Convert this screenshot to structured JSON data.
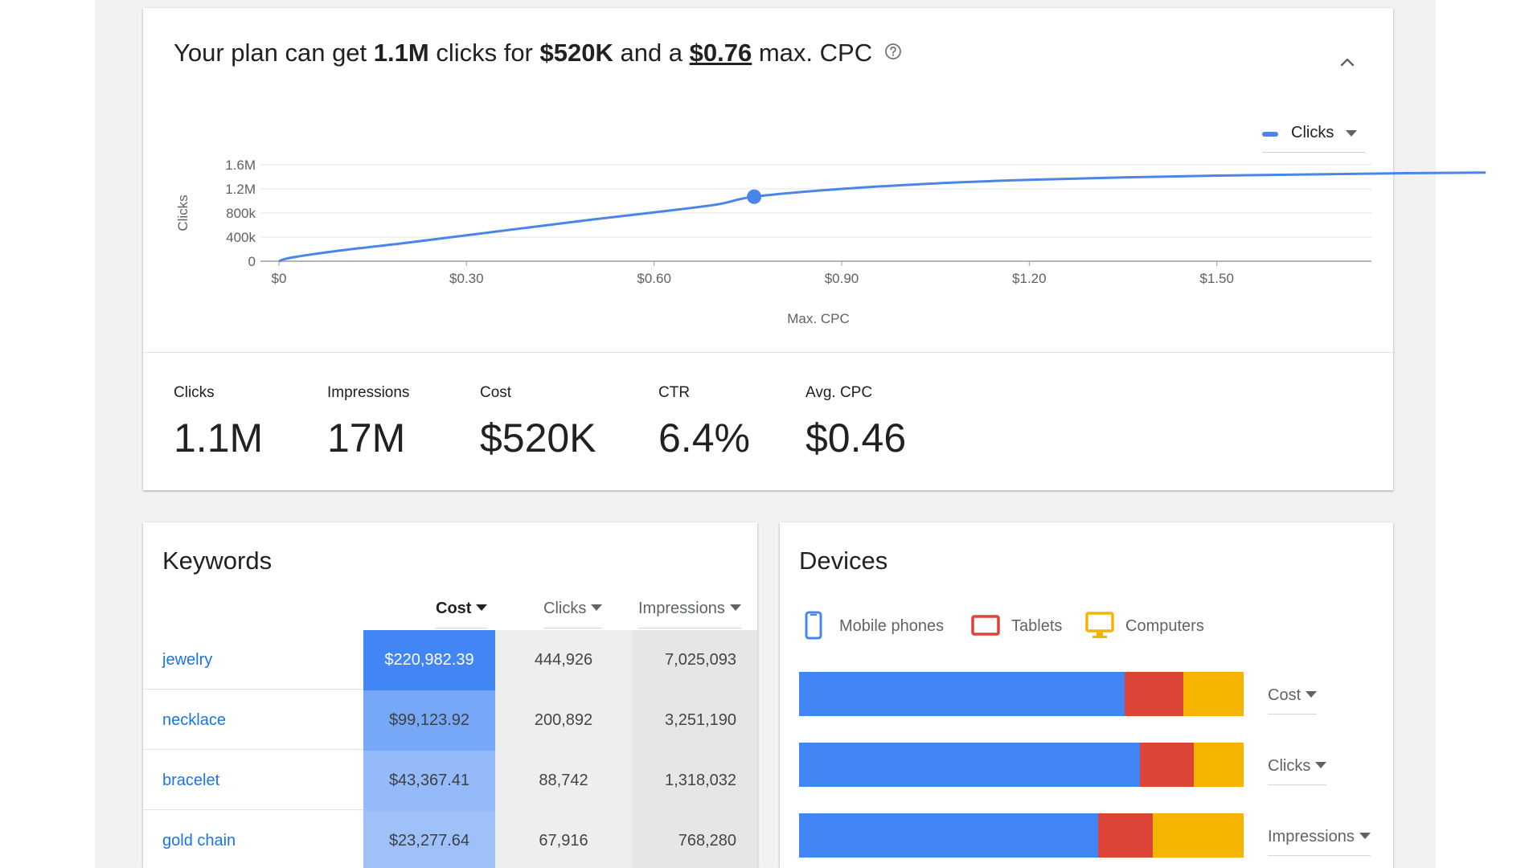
{
  "colors": {
    "accent": "#4a86e8",
    "mobile": "#4285f4",
    "tablets": "#db4437",
    "computers": "#f4b400",
    "link": "#1a73e8"
  },
  "plan": {
    "headline_prefix": "Your plan can get ",
    "headline_clicks": "1.1M",
    "headline_mid1": " clicks for ",
    "headline_cost": "$520K",
    "headline_mid2": " and a ",
    "headline_cpc": "$0.76",
    "headline_suffix": " max. CPC",
    "help_icon": "help-circle-icon",
    "collapse_icon": "chevron-up-icon",
    "metric_select_label": "Clicks"
  },
  "chart_data": {
    "type": "line",
    "ylabel": "Clicks",
    "xlabel": "Max. CPC",
    "x_ticks": [
      "$0",
      "$0.30",
      "$0.60",
      "$0.90",
      "$1.20",
      "$1.50"
    ],
    "y_ticks": [
      "0",
      "400k",
      "800k",
      "1.2M",
      "1.6M"
    ],
    "xlim": [
      0,
      1.95
    ],
    "ylim": [
      0,
      1600000
    ],
    "grid": true,
    "series": [
      {
        "name": "Clicks",
        "x": [
          0,
          0.02,
          0.1,
          0.2,
          0.3,
          0.4,
          0.5,
          0.6,
          0.7,
          0.76,
          0.9,
          1.05,
          1.2,
          1.35,
          1.5,
          1.65,
          1.8,
          1.93
        ],
        "y": [
          0,
          60000,
          180000,
          300000,
          430000,
          560000,
          690000,
          810000,
          940000,
          1070000,
          1200000,
          1290000,
          1350000,
          1390000,
          1420000,
          1440000,
          1460000,
          1470000
        ]
      }
    ],
    "highlight": {
      "x": 0.76,
      "y": 1070000
    }
  },
  "stats": [
    {
      "label": "Clicks",
      "value": "1.1M"
    },
    {
      "label": "Impressions",
      "value": "17M"
    },
    {
      "label": "Cost",
      "value": "$520K"
    },
    {
      "label": "CTR",
      "value": "6.4%"
    },
    {
      "label": "Avg. CPC",
      "value": "$0.46"
    }
  ],
  "keywords": {
    "title": "Keywords",
    "columns": {
      "cost": "Cost",
      "clicks": "Clicks",
      "impressions": "Impressions"
    },
    "sort_icon": "caret-down-icon",
    "rows": [
      {
        "keyword": "jewelry",
        "cost": "$220,982.39",
        "clicks": "444,926",
        "impressions": "7,025,093",
        "cost_intensity": 1.0
      },
      {
        "keyword": "necklace",
        "cost": "$99,123.92",
        "clicks": "200,892",
        "impressions": "3,251,190",
        "cost_intensity": 0.6
      },
      {
        "keyword": "bracelet",
        "cost": "$43,367.41",
        "clicks": "88,742",
        "impressions": "1,318,032",
        "cost_intensity": 0.38
      },
      {
        "keyword": "gold chain",
        "cost": "$23,277.64",
        "clicks": "67,916",
        "impressions": "768,280",
        "cost_intensity": 0.3
      }
    ]
  },
  "devices": {
    "title": "Devices",
    "legend": [
      {
        "label": "Mobile phones",
        "icon": "mobile-phone-icon"
      },
      {
        "label": "Tablets",
        "icon": "tablet-icon"
      },
      {
        "label": "Computers",
        "icon": "computer-monitor-icon"
      }
    ],
    "bars": [
      {
        "metric": "Cost",
        "shares": [
          0.732,
          0.133,
          0.135
        ]
      },
      {
        "metric": "Clicks",
        "shares": [
          0.767,
          0.12,
          0.113
        ]
      },
      {
        "metric": "Impressions",
        "shares": [
          0.672,
          0.123,
          0.205
        ]
      }
    ]
  }
}
